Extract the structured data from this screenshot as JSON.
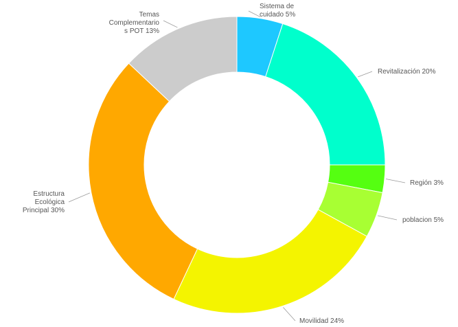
{
  "chart_data": {
    "type": "pie",
    "variant": "donut",
    "legend": "none",
    "slices": [
      {
        "label": "Sistema de cuidado",
        "value": 5,
        "label_lines": [
          "Sistema de",
          "cuidado 5%"
        ],
        "color": "#1EC8FF"
      },
      {
        "label": "Revitalización",
        "value": 20,
        "label_lines": [
          "Revitalización 20%"
        ],
        "color": "#00FFCC"
      },
      {
        "label": "Región",
        "value": 3,
        "label_lines": [
          "Región 3%"
        ],
        "color": "#55FF11"
      },
      {
        "label": "poblacion",
        "value": 5,
        "label_lines": [
          "poblacion 5%"
        ],
        "color": "#A8FF33"
      },
      {
        "label": "Movilidad",
        "value": 24,
        "label_lines": [
          "Movilidad 24%"
        ],
        "color": "#F4F400"
      },
      {
        "label": "Estructura Ecológica Principal",
        "value": 30,
        "label_lines": [
          "Estructura",
          "Ecológica",
          "Principal 30%"
        ],
        "color": "#FFA800"
      },
      {
        "label": "Temas Complementario s POT",
        "value": 13,
        "label_lines": [
          "Temas",
          "Complementario",
          "s POT 13%"
        ],
        "color": "#CCCCCC"
      }
    ]
  }
}
